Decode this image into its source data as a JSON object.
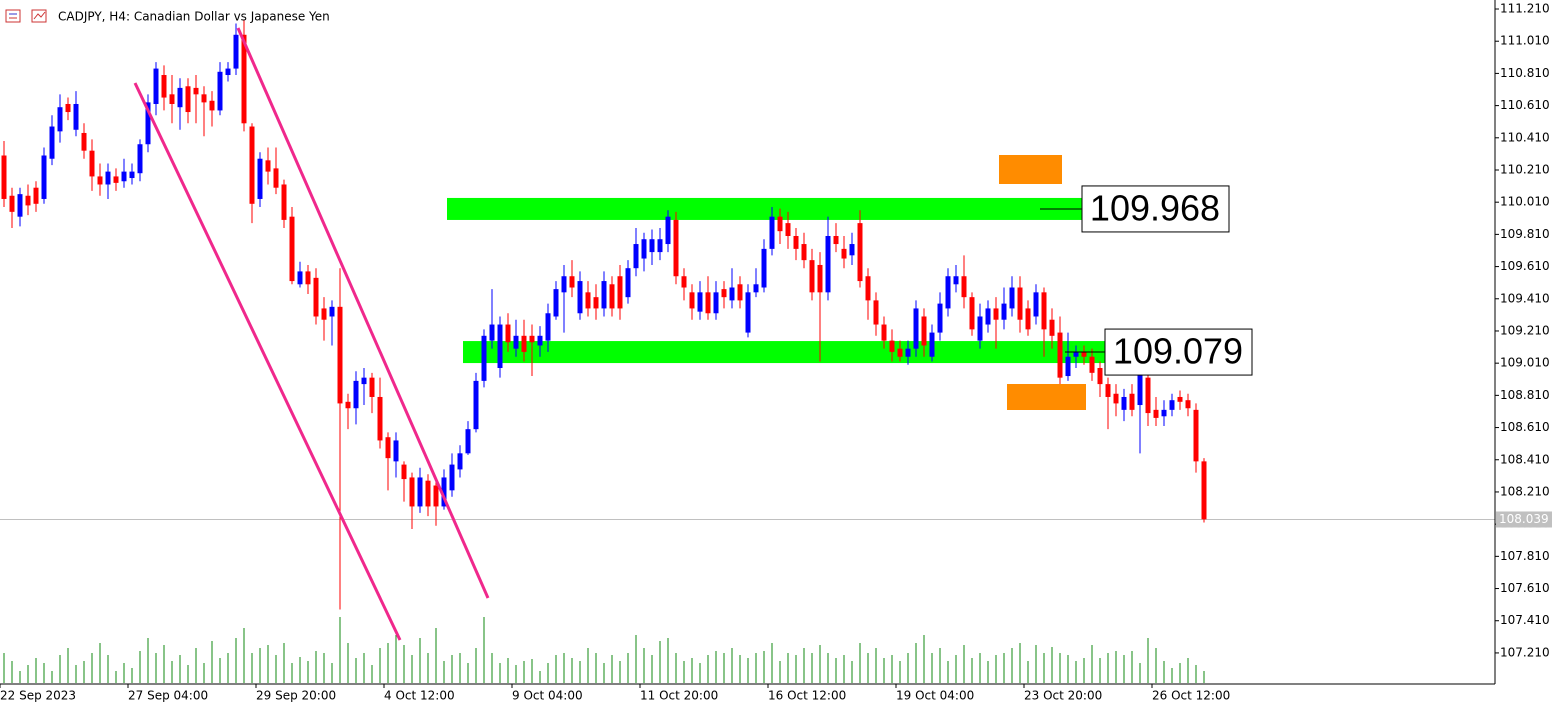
{
  "chart_data": {
    "type": "candlestick",
    "title": "CADJPY, H4:  Canadian Dollar vs Japanese Yen",
    "up_color": "#0000ff",
    "down_color": "#ff0000",
    "volume_color": "#118a11",
    "ylim": [
      107.017,
      111.266
    ],
    "yticks": [
      {
        "value": 111.21,
        "label": "111.210"
      },
      {
        "value": 111.01,
        "label": "111.010"
      },
      {
        "value": 110.81,
        "label": "110.810"
      },
      {
        "value": 110.61,
        "label": "110.610"
      },
      {
        "value": 110.41,
        "label": "110.410"
      },
      {
        "value": 110.21,
        "label": "110.210"
      },
      {
        "value": 110.01,
        "label": "110.010"
      },
      {
        "value": 109.81,
        "label": "109.810"
      },
      {
        "value": 109.61,
        "label": "109.610"
      },
      {
        "value": 109.41,
        "label": "109.410"
      },
      {
        "value": 109.21,
        "label": "109.210"
      },
      {
        "value": 109.01,
        "label": "109.010"
      },
      {
        "value": 108.81,
        "label": "108.810"
      },
      {
        "value": 108.61,
        "label": "108.610"
      },
      {
        "value": 108.41,
        "label": "108.410"
      },
      {
        "value": 108.21,
        "label": "108.210"
      },
      {
        "value": 108.01,
        "label": "108.010"
      },
      {
        "value": 107.81,
        "label": "107.810"
      },
      {
        "value": 107.61,
        "label": "107.610"
      },
      {
        "value": 107.41,
        "label": "107.410"
      },
      {
        "value": 107.21,
        "label": "107.210"
      }
    ],
    "xticks": [
      {
        "value": 0,
        "label": "22 Sep 2023"
      },
      {
        "value": 16,
        "label": "27 Sep 04:00"
      },
      {
        "value": 32,
        "label": "29 Sep 20:00"
      },
      {
        "value": 48,
        "label": "4 Oct 12:00"
      },
      {
        "value": 64,
        "label": "9 Oct 04:00"
      },
      {
        "value": 80,
        "label": "11 Oct 20:00"
      },
      {
        "value": 96,
        "label": "16 Oct 12:00"
      },
      {
        "value": 112,
        "label": "19 Oct 04:00"
      },
      {
        "value": 128,
        "label": "23 Oct 20:00"
      },
      {
        "value": 144,
        "label": "26 Oct 12:00"
      }
    ],
    "levels": [
      109.968,
      109.079
    ],
    "last_price": 108.039,
    "ohlc": [
      [
        110.3,
        110.39,
        109.98,
        110.03
      ],
      [
        110.05,
        110.1,
        109.85,
        109.95
      ],
      [
        109.92,
        110.1,
        109.86,
        110.06
      ],
      [
        110.05,
        110.12,
        109.93,
        109.99
      ],
      [
        110.1,
        110.14,
        109.95,
        110.0
      ],
      [
        110.03,
        110.35,
        110.0,
        110.3
      ],
      [
        110.28,
        110.55,
        110.24,
        110.48
      ],
      [
        110.45,
        110.68,
        110.38,
        110.6
      ],
      [
        110.62,
        110.66,
        110.52,
        110.57
      ],
      [
        110.46,
        110.7,
        110.42,
        110.62
      ],
      [
        110.44,
        110.5,
        110.28,
        110.33
      ],
      [
        110.33,
        110.4,
        110.08,
        110.17
      ],
      [
        110.17,
        110.25,
        110.05,
        110.12
      ],
      [
        110.12,
        110.25,
        110.03,
        110.2
      ],
      [
        110.17,
        110.22,
        110.08,
        110.13
      ],
      [
        110.14,
        110.28,
        110.1,
        110.2
      ],
      [
        110.16,
        110.25,
        110.12,
        110.2
      ],
      [
        110.19,
        110.4,
        110.14,
        110.37
      ],
      [
        110.37,
        110.68,
        110.32,
        110.63
      ],
      [
        110.62,
        110.88,
        110.55,
        110.84
      ],
      [
        110.8,
        110.86,
        110.58,
        110.66
      ],
      [
        110.68,
        110.8,
        110.5,
        110.62
      ],
      [
        110.6,
        110.78,
        110.46,
        110.72
      ],
      [
        110.73,
        110.78,
        110.5,
        110.57
      ],
      [
        110.72,
        110.8,
        110.5,
        110.68
      ],
      [
        110.68,
        110.73,
        110.42,
        110.63
      ],
      [
        110.64,
        110.7,
        110.48,
        110.58
      ],
      [
        110.58,
        110.88,
        110.55,
        110.82
      ],
      [
        110.8,
        110.88,
        110.76,
        110.84
      ],
      [
        110.84,
        111.12,
        110.8,
        111.05
      ],
      [
        111.05,
        111.14,
        110.45,
        110.5
      ],
      [
        110.48,
        110.5,
        109.88,
        110.0
      ],
      [
        110.03,
        110.32,
        109.98,
        110.28
      ],
      [
        110.27,
        110.35,
        110.12,
        110.2
      ],
      [
        110.22,
        110.35,
        110.06,
        110.1
      ],
      [
        110.12,
        110.15,
        109.85,
        109.9
      ],
      [
        109.92,
        109.98,
        109.5,
        109.52
      ],
      [
        109.5,
        109.64,
        109.48,
        109.58
      ],
      [
        109.58,
        109.62,
        109.44,
        109.5
      ],
      [
        109.54,
        109.6,
        109.25,
        109.3
      ],
      [
        109.35,
        109.42,
        109.15,
        109.28
      ],
      [
        109.3,
        109.4,
        109.12,
        109.36
      ],
      [
        109.36,
        109.6,
        107.48,
        108.76
      ],
      [
        108.77,
        108.82,
        108.6,
        108.73
      ],
      [
        108.73,
        108.96,
        108.63,
        108.9
      ],
      [
        108.88,
        108.98,
        108.75,
        108.92
      ],
      [
        108.92,
        108.95,
        108.7,
        108.8
      ],
      [
        108.8,
        108.92,
        108.48,
        108.53
      ],
      [
        108.55,
        108.58,
        108.22,
        108.42
      ],
      [
        108.4,
        108.58,
        108.3,
        108.53
      ],
      [
        108.38,
        108.4,
        108.15,
        108.29
      ],
      [
        108.3,
        108.33,
        107.98,
        108.12
      ],
      [
        108.12,
        108.36,
        108.08,
        108.3
      ],
      [
        108.28,
        108.32,
        108.06,
        108.12
      ],
      [
        108.25,
        108.3,
        108.0,
        108.12
      ],
      [
        108.12,
        108.35,
        108.1,
        108.3
      ],
      [
        108.22,
        108.45,
        108.18,
        108.38
      ],
      [
        108.35,
        108.5,
        108.3,
        108.45
      ],
      [
        108.45,
        108.65,
        108.44,
        108.6
      ],
      [
        108.6,
        108.95,
        108.58,
        108.9
      ],
      [
        108.9,
        109.22,
        108.86,
        109.18
      ],
      [
        109.15,
        109.47,
        109.1,
        109.25
      ],
      [
        108.98,
        109.3,
        108.92,
        109.25
      ],
      [
        109.25,
        109.32,
        109.08,
        109.14
      ],
      [
        109.1,
        109.28,
        109.05,
        109.18
      ],
      [
        109.18,
        109.28,
        109.02,
        109.08
      ],
      [
        109.18,
        109.25,
        108.93,
        109.14
      ],
      [
        109.12,
        109.24,
        109.05,
        109.18
      ],
      [
        109.15,
        109.38,
        109.08,
        109.32
      ],
      [
        109.3,
        109.52,
        109.28,
        109.47
      ],
      [
        109.45,
        109.62,
        109.2,
        109.55
      ],
      [
        109.55,
        109.65,
        109.42,
        109.48
      ],
      [
        109.32,
        109.58,
        109.28,
        109.52
      ],
      [
        109.45,
        109.52,
        109.3,
        109.35
      ],
      [
        109.42,
        109.5,
        109.28,
        109.35
      ],
      [
        109.35,
        109.58,
        109.3,
        109.52
      ],
      [
        109.5,
        109.55,
        109.3,
        109.35
      ],
      [
        109.55,
        109.62,
        109.28,
        109.35
      ],
      [
        109.42,
        109.65,
        109.38,
        109.6
      ],
      [
        109.6,
        109.85,
        109.55,
        109.75
      ],
      [
        109.66,
        109.82,
        109.58,
        109.78
      ],
      [
        109.7,
        109.84,
        109.62,
        109.78
      ],
      [
        109.7,
        109.85,
        109.65,
        109.78
      ],
      [
        109.75,
        109.96,
        109.7,
        109.92
      ],
      [
        109.9,
        109.95,
        109.5,
        109.55
      ],
      [
        109.55,
        109.6,
        109.4,
        109.48
      ],
      [
        109.45,
        109.5,
        109.28,
        109.35
      ],
      [
        109.33,
        109.52,
        109.28,
        109.45
      ],
      [
        109.45,
        109.55,
        109.28,
        109.32
      ],
      [
        109.32,
        109.52,
        109.28,
        109.45
      ],
      [
        109.47,
        109.52,
        109.35,
        109.42
      ],
      [
        109.4,
        109.6,
        109.35,
        109.48
      ],
      [
        109.5,
        109.55,
        109.35,
        109.4
      ],
      [
        109.2,
        109.5,
        109.17,
        109.45
      ],
      [
        109.45,
        109.6,
        109.42,
        109.5
      ],
      [
        109.48,
        109.78,
        109.45,
        109.72
      ],
      [
        109.72,
        109.98,
        109.68,
        109.92
      ],
      [
        109.92,
        109.97,
        109.75,
        109.83
      ],
      [
        109.88,
        109.95,
        109.72,
        109.8
      ],
      [
        109.8,
        109.85,
        109.65,
        109.72
      ],
      [
        109.75,
        109.82,
        109.6,
        109.65
      ],
      [
        109.65,
        109.72,
        109.4,
        109.45
      ],
      [
        109.62,
        109.7,
        109.02,
        109.45
      ],
      [
        109.45,
        109.92,
        109.4,
        109.8
      ],
      [
        109.8,
        109.88,
        109.7,
        109.75
      ],
      [
        109.72,
        109.8,
        109.6,
        109.66
      ],
      [
        109.68,
        109.82,
        109.62,
        109.75
      ],
      [
        109.88,
        109.96,
        109.48,
        109.52
      ],
      [
        109.55,
        109.6,
        109.28,
        109.4
      ],
      [
        109.4,
        109.45,
        109.18,
        109.25
      ],
      [
        109.25,
        109.3,
        109.1,
        109.15
      ],
      [
        109.15,
        109.22,
        109.02,
        109.08
      ],
      [
        109.1,
        109.15,
        109.02,
        109.05
      ],
      [
        109.05,
        109.15,
        109.0,
        109.1
      ],
      [
        109.1,
        109.4,
        109.05,
        109.35
      ],
      [
        109.3,
        109.35,
        109.05,
        109.12
      ],
      [
        109.05,
        109.25,
        109.02,
        109.2
      ],
      [
        109.2,
        109.45,
        109.15,
        109.38
      ],
      [
        109.35,
        109.6,
        109.3,
        109.55
      ],
      [
        109.5,
        109.62,
        109.45,
        109.55
      ],
      [
        109.55,
        109.68,
        109.35,
        109.42
      ],
      [
        109.42,
        109.45,
        109.18,
        109.22
      ],
      [
        109.15,
        109.38,
        109.1,
        109.3
      ],
      [
        109.25,
        109.4,
        109.2,
        109.35
      ],
      [
        109.35,
        109.42,
        109.1,
        109.28
      ],
      [
        109.28,
        109.48,
        109.22,
        109.38
      ],
      [
        109.35,
        109.55,
        109.3,
        109.48
      ],
      [
        109.48,
        109.55,
        109.2,
        109.28
      ],
      [
        109.35,
        109.4,
        109.18,
        109.22
      ],
      [
        109.3,
        109.5,
        109.25,
        109.45
      ],
      [
        109.45,
        109.48,
        109.05,
        109.22
      ],
      [
        109.28,
        109.35,
        109.1,
        109.18
      ],
      [
        109.2,
        109.3,
        108.88,
        108.92
      ],
      [
        108.93,
        109.2,
        108.9,
        109.05
      ],
      [
        109.05,
        109.12,
        108.98,
        109.08
      ],
      [
        109.08,
        109.12,
        109.0,
        109.05
      ],
      [
        109.05,
        109.1,
        108.9,
        108.95
      ],
      [
        108.98,
        109.02,
        108.8,
        108.88
      ],
      [
        108.88,
        108.92,
        108.6,
        108.8
      ],
      [
        108.82,
        108.88,
        108.68,
        108.76
      ],
      [
        108.72,
        108.85,
        108.65,
        108.8
      ],
      [
        108.82,
        108.88,
        108.68,
        108.72
      ],
      [
        108.75,
        109.05,
        108.45,
        109.0
      ],
      [
        108.92,
        109.05,
        108.62,
        108.7
      ],
      [
        108.72,
        108.8,
        108.62,
        108.67
      ],
      [
        108.68,
        108.78,
        108.62,
        108.72
      ],
      [
        108.72,
        108.82,
        108.68,
        108.78
      ],
      [
        108.8,
        108.84,
        108.72,
        108.77
      ],
      [
        108.78,
        108.82,
        108.68,
        108.73
      ],
      [
        108.72,
        108.76,
        108.33,
        108.4
      ],
      [
        108.4,
        108.42,
        108.02,
        108.04
      ]
    ],
    "volumes": [
      30,
      22,
      12,
      18,
      25,
      20,
      12,
      28,
      35,
      18,
      22,
      30,
      40,
      28,
      12,
      20,
      15,
      32,
      45,
      30,
      38,
      22,
      28,
      18,
      35,
      20,
      42,
      25,
      30,
      45,
      55,
      30,
      35,
      38,
      28,
      40,
      20,
      26,
      22,
      32,
      30,
      20,
      66,
      40,
      25,
      30,
      18,
      35,
      40,
      48,
      38,
      28,
      45,
      30,
      55,
      22,
      28,
      30,
      20,
      35,
      66,
      30,
      20,
      25,
      18,
      22,
      24,
      12,
      20,
      28,
      30,
      25,
      22,
      35,
      30,
      20,
      28,
      22,
      30,
      48,
      35,
      28,
      42,
      45,
      30,
      22,
      25,
      20,
      28,
      32,
      30,
      35,
      28,
      25,
      30,
      32,
      40,
      22,
      30,
      28,
      35,
      30,
      38,
      30,
      25,
      28,
      22,
      40,
      30,
      35,
      25,
      28,
      22,
      30,
      40,
      48,
      30,
      35,
      22,
      28,
      38,
      25,
      30,
      22,
      28,
      30,
      35,
      40,
      22,
      38,
      30,
      36,
      30,
      28,
      22,
      25,
      38,
      25,
      30,
      32,
      28,
      32,
      20,
      45,
      35,
      22,
      15,
      20,
      25,
      18,
      12
    ]
  }
}
